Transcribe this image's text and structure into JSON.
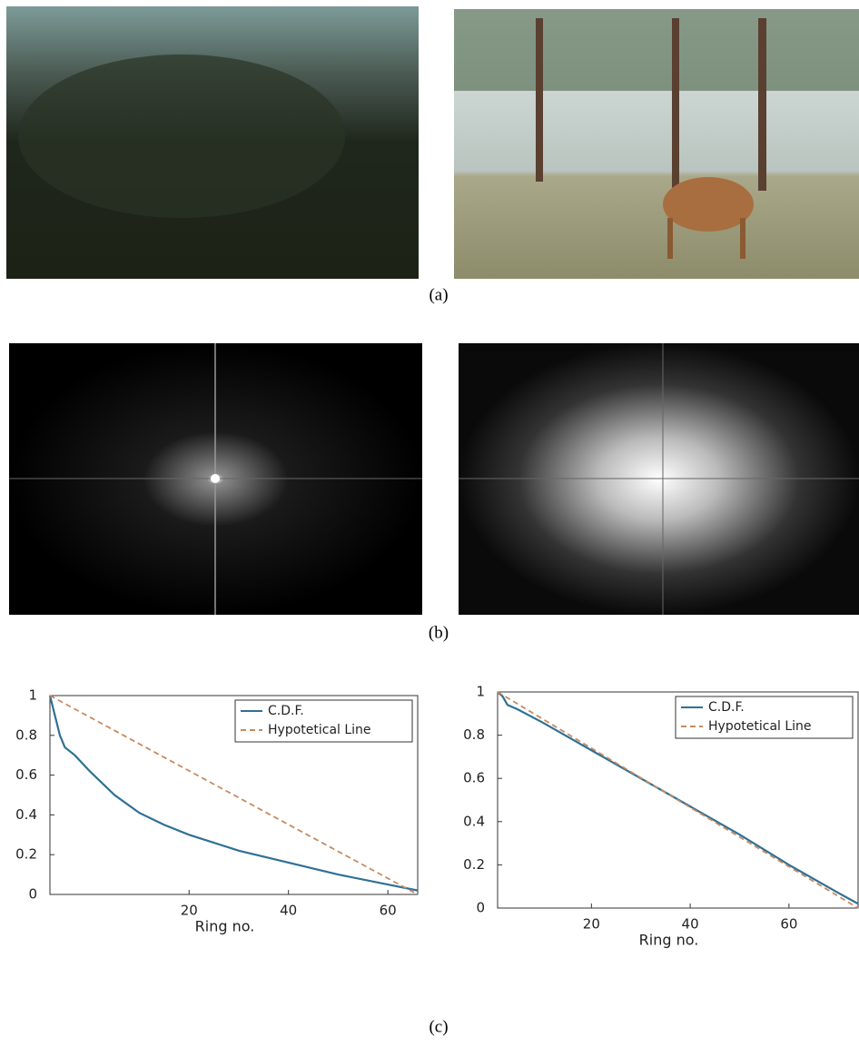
{
  "captions": [
    "(a)",
    "(b)",
    "(c)"
  ],
  "chart_data": [
    {
      "type": "line",
      "xlabel": "Ring no.",
      "xlim": [
        -8,
        66
      ],
      "ylim": [
        0,
        1
      ],
      "xticks": [
        20,
        40,
        60
      ],
      "yticks": [
        0,
        0.2,
        0.4,
        0.6,
        0.8,
        1
      ],
      "legend": "upper-right",
      "series": [
        {
          "name": "C.D.F.",
          "color": "#2f7095",
          "dash": false,
          "x": [
            -8,
            -7,
            -6,
            -5,
            -3,
            0,
            5,
            10,
            15,
            20,
            30,
            40,
            50,
            60,
            66
          ],
          "values": [
            1,
            0.9,
            0.8,
            0.74,
            0.7,
            0.62,
            0.5,
            0.41,
            0.35,
            0.3,
            0.22,
            0.16,
            0.1,
            0.05,
            0.02
          ]
        },
        {
          "name": "Hypotetical Line",
          "color": "#c98a5e",
          "dash": true,
          "x": [
            -8,
            66
          ],
          "values": [
            1,
            0
          ]
        }
      ]
    },
    {
      "type": "line",
      "xlabel": "Ring no.",
      "xlim": [
        1,
        74
      ],
      "ylim": [
        0,
        1
      ],
      "xticks": [
        20,
        40,
        60
      ],
      "yticks": [
        0,
        0.2,
        0.4,
        0.6,
        0.8,
        1
      ],
      "legend": "upper-right",
      "series": [
        {
          "name": "C.D.F.",
          "color": "#2f7095",
          "dash": false,
          "x": [
            1,
            2,
            3,
            5,
            10,
            20,
            30,
            40,
            50,
            60,
            70,
            74
          ],
          "values": [
            1,
            0.98,
            0.94,
            0.92,
            0.86,
            0.73,
            0.6,
            0.47,
            0.34,
            0.2,
            0.07,
            0.02
          ]
        },
        {
          "name": "Hypotetical Line",
          "color": "#c98a5e",
          "dash": true,
          "x": [
            1,
            74
          ],
          "values": [
            1,
            0
          ]
        }
      ]
    }
  ]
}
